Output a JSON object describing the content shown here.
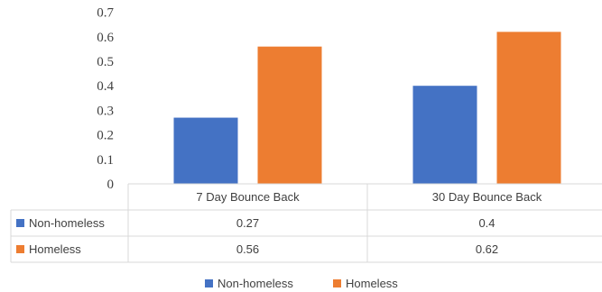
{
  "chart_data": {
    "type": "bar",
    "categories": [
      "7 Day Bounce Back",
      "30 Day Bounce Back"
    ],
    "series": [
      {
        "name": "Non-homeless",
        "values": [
          0.27,
          0.4
        ],
        "color": "#4472C4",
        "labels": [
          "0.27",
          "0.4"
        ]
      },
      {
        "name": "Homeless",
        "values": [
          0.56,
          0.62
        ],
        "color": "#ED7D31",
        "labels": [
          "0.56",
          "0.62"
        ]
      }
    ],
    "ylim": [
      0,
      0.7
    ],
    "yticks": [
      "0",
      "0.1",
      "0.2",
      "0.3",
      "0.4",
      "0.5",
      "0.6",
      "0.7"
    ],
    "title": "",
    "xlabel": "",
    "ylabel": "",
    "grid": false,
    "data_table": true,
    "legend": "bottom"
  }
}
